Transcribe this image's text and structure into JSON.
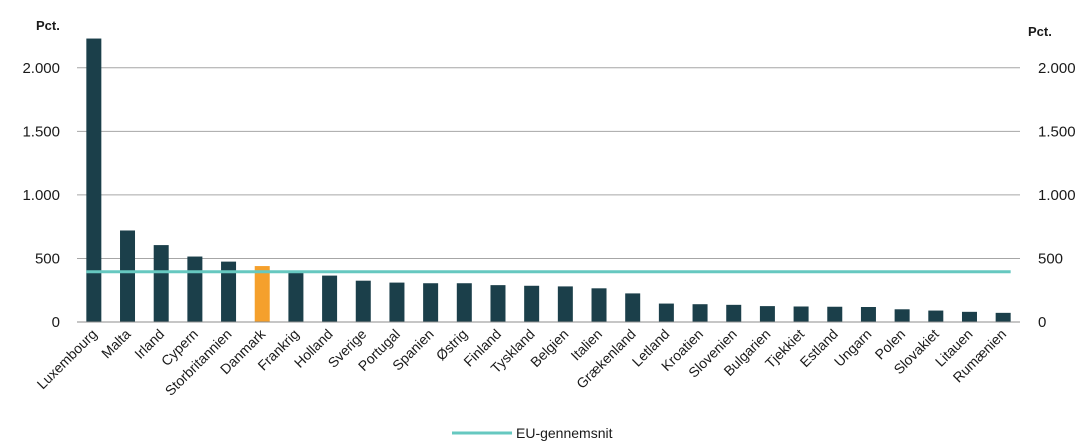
{
  "chart_data": {
    "type": "bar",
    "y_unit_left": "Pct.",
    "y_unit_right": "Pct.",
    "ylim": [
      0,
      2250
    ],
    "yticks": [
      0,
      500,
      1000,
      1500,
      2000
    ],
    "ytick_labels": [
      "0",
      "500",
      "1.000",
      "1.500",
      "2.000"
    ],
    "grid": true,
    "legend_position": "bottom",
    "categories": [
      "Luxembourg",
      "Malta",
      "Irland",
      "Cypern",
      "Storbritannien",
      "Danmark",
      "Frankrig",
      "Holland",
      "Sverige",
      "Portugal",
      "Spanien",
      "Østrig",
      "Finland",
      "Tyskland",
      "Belgien",
      "Italien",
      "Grækenland",
      "Letland",
      "Kroatien",
      "Slovenien",
      "Bulgarien",
      "Tjekkiet",
      "Estland",
      "Ungarn",
      "Polen",
      "Slovakiet",
      "Litauen",
      "Rumænien"
    ],
    "values": [
      2230,
      720,
      605,
      515,
      475,
      440,
      400,
      365,
      325,
      310,
      305,
      305,
      290,
      285,
      280,
      265,
      225,
      145,
      140,
      135,
      125,
      122,
      120,
      118,
      100,
      90,
      80,
      72
    ],
    "highlight_category": "Danmark",
    "series": [
      {
        "name": "",
        "values": [
          2230,
          720,
          605,
          515,
          475,
          440,
          400,
          365,
          325,
          310,
          305,
          305,
          290,
          285,
          280,
          265,
          225,
          145,
          140,
          135,
          125,
          122,
          120,
          118,
          100,
          90,
          80,
          72
        ]
      }
    ],
    "reference_line": {
      "name": "EU-gennemsnit",
      "value": 395
    },
    "colors": {
      "bar": "#1b3f4a",
      "highlight": "#f5a02c",
      "reference_line": "#66c8c0",
      "grid": "#a6a6a6",
      "axis": "#8c8c8c"
    }
  }
}
